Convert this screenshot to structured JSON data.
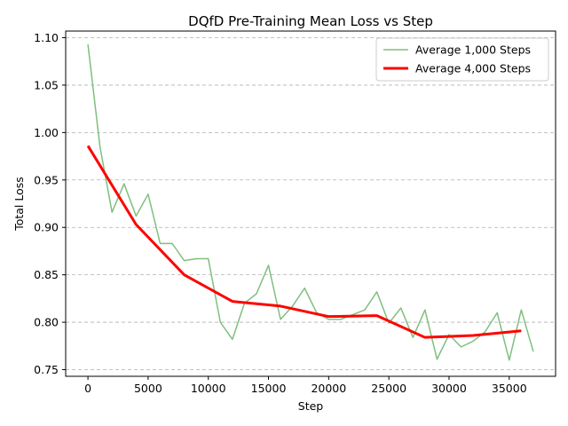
{
  "chart_data": {
    "type": "line",
    "title": "DQfD Pre-Training Mean Loss vs Step",
    "xlabel": "Step",
    "ylabel": "Total Loss",
    "xlim": [
      -1850,
      38850
    ],
    "ylim": [
      0.743,
      1.107
    ],
    "x_ticks": [
      0,
      5000,
      10000,
      15000,
      20000,
      25000,
      30000,
      35000
    ],
    "y_ticks": [
      0.75,
      0.8,
      0.85,
      0.9,
      0.95,
      1.0,
      1.05,
      1.1
    ],
    "y_tick_labels": [
      "0.75",
      "0.80",
      "0.85",
      "0.90",
      "0.95",
      "1.00",
      "1.05",
      "1.10"
    ],
    "grid": "horizontal dashed",
    "legend_position": "top-right",
    "series": [
      {
        "name": "Average 1,000 Steps",
        "color": "#7fbf7f",
        "linewidth": 1.5,
        "x": [
          0,
          1000,
          2000,
          3000,
          4000,
          5000,
          6000,
          7000,
          8000,
          9000,
          10000,
          11000,
          12000,
          13000,
          14000,
          15000,
          16000,
          17000,
          18000,
          19000,
          20000,
          21000,
          22000,
          23000,
          24000,
          25000,
          26000,
          27000,
          28000,
          29000,
          30000,
          31000,
          32000,
          33000,
          34000,
          35000,
          36000,
          37000
        ],
        "values": [
          1.093,
          0.985,
          0.916,
          0.946,
          0.912,
          0.935,
          0.883,
          0.883,
          0.865,
          0.867,
          0.867,
          0.8,
          0.782,
          0.82,
          0.83,
          0.86,
          0.803,
          0.817,
          0.836,
          0.81,
          0.803,
          0.803,
          0.808,
          0.813,
          0.832,
          0.799,
          0.815,
          0.784,
          0.813,
          0.761,
          0.787,
          0.774,
          0.78,
          0.79,
          0.81,
          0.76,
          0.813,
          0.769
        ]
      },
      {
        "name": "Average 4,000 Steps",
        "color": "#ff0000",
        "linewidth": 3,
        "x": [
          0,
          4000,
          8000,
          12000,
          16000,
          20000,
          24000,
          28000,
          32000,
          36000
        ],
        "values": [
          0.986,
          0.903,
          0.85,
          0.822,
          0.817,
          0.806,
          0.807,
          0.784,
          0.786,
          0.791
        ]
      }
    ]
  }
}
